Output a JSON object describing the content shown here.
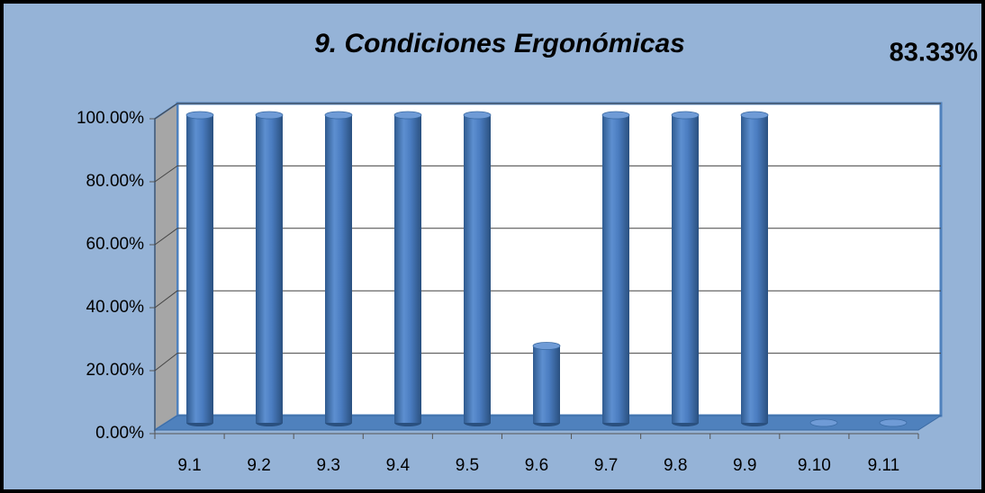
{
  "chart_data": {
    "type": "bar3d",
    "title": "9. Condiciones Ergonómicas",
    "annotation": "83.33%",
    "categories": [
      "9.1",
      "9.2",
      "9.3",
      "9.4",
      "9.5",
      "9.6",
      "9.7",
      "9.8",
      "9.9",
      "9.10",
      "9.11"
    ],
    "values": [
      100,
      100,
      100,
      100,
      100,
      25,
      100,
      100,
      100,
      0,
      0
    ],
    "color": "#4f81bd",
    "ylim": [
      0,
      100
    ],
    "yticks": [
      {
        "value": 0,
        "label": "0.00%"
      },
      {
        "value": 20,
        "label": "20.00%"
      },
      {
        "value": 40,
        "label": "40.00%"
      },
      {
        "value": 60,
        "label": "60.00%"
      },
      {
        "value": 80,
        "label": "80.00%"
      },
      {
        "value": 100,
        "label": "100.00%"
      }
    ],
    "grid": true
  }
}
